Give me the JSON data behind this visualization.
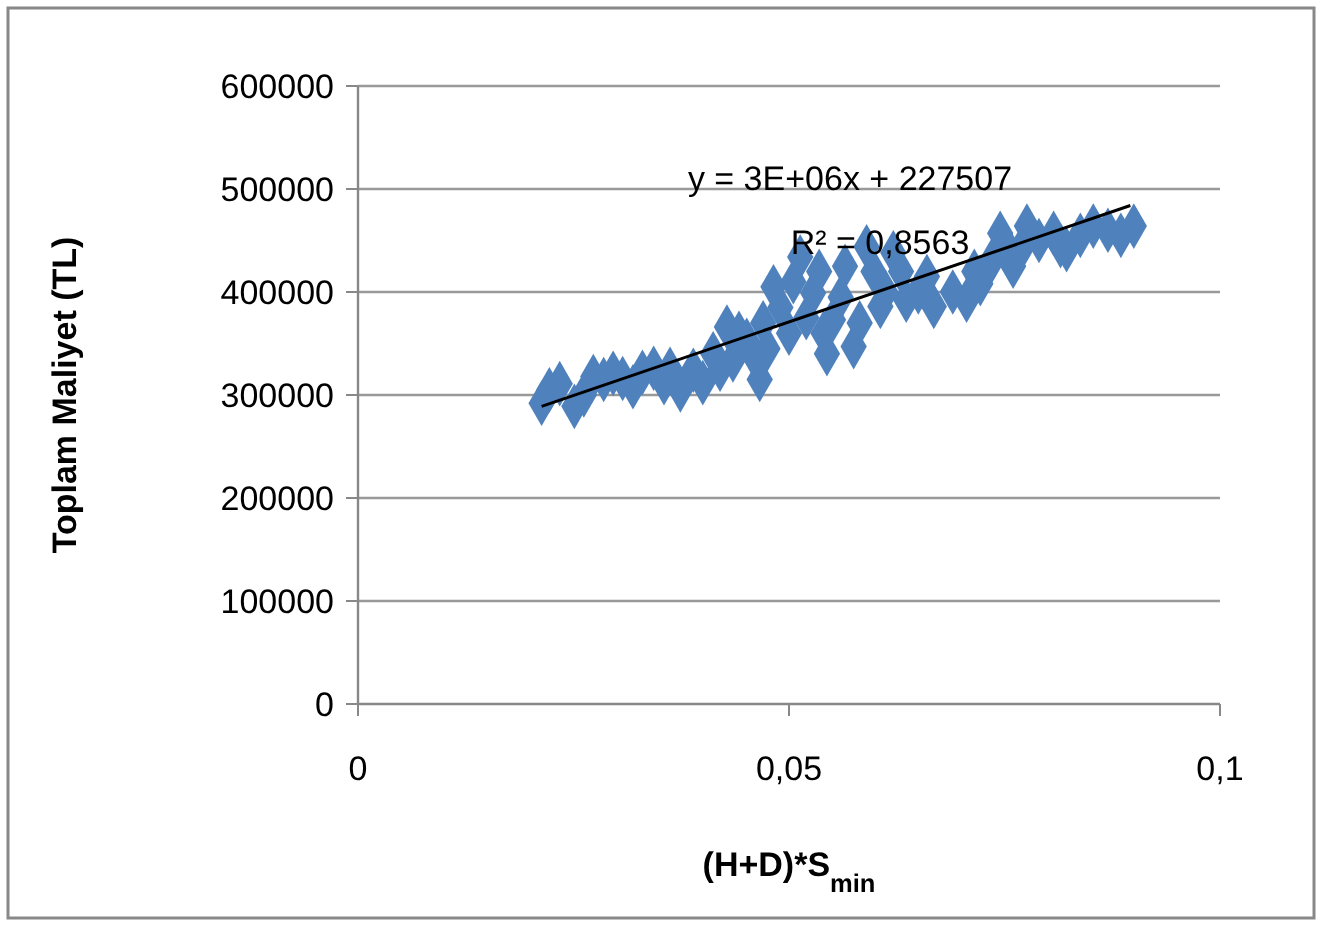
{
  "chart_data": {
    "type": "scatter",
    "xlabel": "(H+D)*S$_{min}$",
    "ylabel": "Toplam Maliyet (TL)",
    "xlim": [
      0,
      0.1
    ],
    "xticks": [
      0,
      {
        "value": 0.05,
        "label": "0,05"
      },
      {
        "value": 0.1,
        "label": "0,1"
      }
    ],
    "ylim": [
      0,
      600000
    ],
    "yticks": [
      0,
      100000,
      200000,
      300000,
      400000,
      500000,
      600000
    ],
    "grid": "y",
    "annotations": [
      "y = 3E+06x + 227507",
      "R² = 0,8563"
    ],
    "series": [
      {
        "color": "#4f81bd",
        "marker": "diamond",
        "x": [
          0.0213,
          0.0234,
          0.0251,
          0.0273,
          0.0296,
          0.0319,
          0.0343,
          0.0374,
          0.0389,
          0.0428,
          0.0435,
          0.0451,
          0.0466,
          0.0482,
          0.0513,
          0.0528,
          0.0544,
          0.0551,
          0.0575,
          0.059,
          0.0606,
          0.0621,
          0.0636,
          0.0668,
          0.0706,
          0.0722,
          0.0745,
          0.076,
          0.0776,
          0.0807,
          0.0822,
          0.0853,
          0.09,
          0.0222,
          0.0262,
          0.0285,
          0.0307,
          0.033,
          0.0355,
          0.0362,
          0.04,
          0.0412,
          0.042,
          0.0442,
          0.0458,
          0.047,
          0.0475,
          0.049,
          0.05,
          0.0505,
          0.052,
          0.0535,
          0.054,
          0.056,
          0.0565,
          0.0582,
          0.0598,
          0.0612,
          0.063,
          0.065,
          0.066,
          0.069,
          0.0715,
          0.0735,
          0.0752,
          0.0768,
          0.079,
          0.0815,
          0.0838,
          0.087,
          0.0885
        ],
        "values": [
          292000,
          311000,
          289000,
          318000,
          321000,
          308000,
          326000,
          305000,
          324000,
          366000,
          334000,
          353000,
          315000,
          405000,
          434000,
          399000,
          340000,
          373000,
          347000,
          444000,
          386000,
          438000,
          392000,
          386000,
          392000,
          408000,
          457000,
          425000,
          464000,
          457000,
          441000,
          464000,
          464000,
          305000,
          300000,
          315000,
          316000,
          322000,
          312000,
          325000,
          312000,
          340000,
          325000,
          360000,
          340000,
          370000,
          345000,
          385000,
          360000,
          410000,
          375000,
          420000,
          360000,
          395000,
          425000,
          370000,
          420000,
          400000,
          420000,
          400000,
          415000,
          400000,
          420000,
          430000,
          445000,
          440000,
          450000,
          445000,
          455000,
          460000,
          455000
        ]
      },
      {
        "type": "line",
        "color": "#000000",
        "line_style": "solid",
        "marker": "none",
        "x": [
          0.0213,
          0.0896
        ],
        "values": [
          289000,
          484000
        ]
      }
    ]
  }
}
